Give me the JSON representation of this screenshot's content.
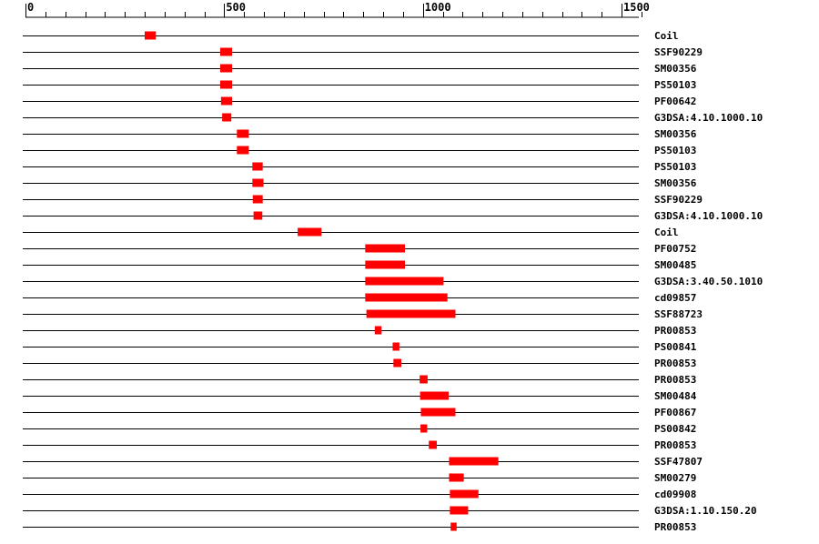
{
  "chart_data": {
    "type": "bar",
    "xlim": [
      0,
      1570
    ],
    "x_ticks": [
      0,
      500,
      1000,
      1500
    ],
    "x_tick_labels": [
      "0",
      "500",
      "1000",
      "1500"
    ],
    "minor_tick_step": 50,
    "bar_color": "#ff0000",
    "line_color": "#000000",
    "features": [
      {
        "label": "Coil",
        "start": 300,
        "end": 328
      },
      {
        "label": "SSF90229",
        "start": 490,
        "end": 520
      },
      {
        "label": "SM00356",
        "start": 490,
        "end": 520
      },
      {
        "label": "PS50103",
        "start": 490,
        "end": 520
      },
      {
        "label": "PF00642",
        "start": 492,
        "end": 520
      },
      {
        "label": "G3DSA:4.10.1000.10",
        "start": 495,
        "end": 518
      },
      {
        "label": "SM00356",
        "start": 532,
        "end": 562
      },
      {
        "label": "PS50103",
        "start": 532,
        "end": 562
      },
      {
        "label": "PS50103",
        "start": 571,
        "end": 597
      },
      {
        "label": "SM00356",
        "start": 571,
        "end": 599
      },
      {
        "label": "SSF90229",
        "start": 572,
        "end": 597
      },
      {
        "label": "G3DSA:4.10.1000.10",
        "start": 574,
        "end": 596
      },
      {
        "label": "Coil",
        "start": 685,
        "end": 745
      },
      {
        "label": "PF00752",
        "start": 855,
        "end": 955
      },
      {
        "label": "SM00485",
        "start": 855,
        "end": 955
      },
      {
        "label": "G3DSA:3.40.50.1010",
        "start": 855,
        "end": 1052
      },
      {
        "label": "cd09857",
        "start": 855,
        "end": 1062
      },
      {
        "label": "SSF88723",
        "start": 858,
        "end": 1082
      },
      {
        "label": "PR00853",
        "start": 879,
        "end": 896
      },
      {
        "label": "PS00841",
        "start": 924,
        "end": 941
      },
      {
        "label": "PR00853",
        "start": 926,
        "end": 946
      },
      {
        "label": "PR00853",
        "start": 992,
        "end": 1012
      },
      {
        "label": "SM00484",
        "start": 993,
        "end": 1065
      },
      {
        "label": "PF00867",
        "start": 995,
        "end": 1082
      },
      {
        "label": "PS00842",
        "start": 994,
        "end": 1011
      },
      {
        "label": "PR00853",
        "start": 1015,
        "end": 1035
      },
      {
        "label": "SSF47807",
        "start": 1066,
        "end": 1190
      },
      {
        "label": "SM00279",
        "start": 1066,
        "end": 1103
      },
      {
        "label": "cd09908",
        "start": 1068,
        "end": 1140
      },
      {
        "label": "G3DSA:1.10.150.20",
        "start": 1068,
        "end": 1114
      },
      {
        "label": "PR00853",
        "start": 1070,
        "end": 1085
      }
    ]
  }
}
